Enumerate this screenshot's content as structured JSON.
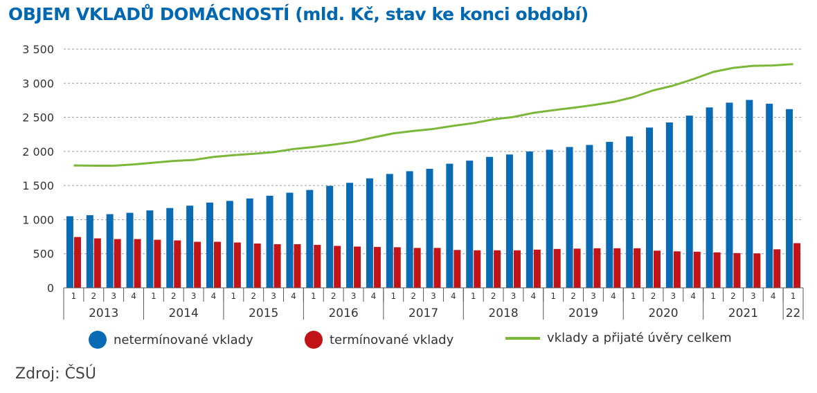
{
  "colors": {
    "title": "#0067b1",
    "nonterm": "#0a6bb5",
    "term": "#c01418",
    "total": "#7bb83a",
    "grid": "#9a9a9a"
  },
  "chart_data": {
    "type": "bar",
    "title": "OBJEM VKLADŮ DOMÁCNOSTÍ (mld. Kč, stav ke konci období)",
    "ylim": [
      0,
      3500
    ],
    "yticks": [
      "0",
      "500",
      "1 000",
      "1 500",
      "2 000",
      "2 500",
      "3 000",
      "3 500"
    ],
    "ytick_values": [
      0,
      500,
      1000,
      1500,
      2000,
      2500,
      3000,
      3500
    ],
    "grid": true,
    "legend_position": "bottom",
    "categories": [
      "1",
      "2",
      "3",
      "4",
      "1",
      "2",
      "3",
      "4",
      "1",
      "2",
      "3",
      "4",
      "1",
      "2",
      "3",
      "4",
      "1",
      "2",
      "3",
      "4",
      "1",
      "2",
      "3",
      "4",
      "1",
      "2",
      "3",
      "4",
      "1",
      "2",
      "3",
      "4",
      "1",
      "2",
      "3",
      "4",
      "1"
    ],
    "years": [
      {
        "label": "2013",
        "count": 4
      },
      {
        "label": "2014",
        "count": 4
      },
      {
        "label": "2015",
        "count": 4
      },
      {
        "label": "2016",
        "count": 4
      },
      {
        "label": "2017",
        "count": 4
      },
      {
        "label": "2018",
        "count": 4
      },
      {
        "label": "2019",
        "count": 4
      },
      {
        "label": "2020",
        "count": 4
      },
      {
        "label": "2021",
        "count": 4
      },
      {
        "label": "22",
        "count": 1
      }
    ],
    "series": [
      {
        "name": "netermínované vklady",
        "type": "bar",
        "values": [
          1050,
          1065,
          1080,
          1100,
          1135,
          1170,
          1205,
          1250,
          1275,
          1310,
          1350,
          1395,
          1435,
          1495,
          1540,
          1605,
          1670,
          1710,
          1745,
          1820,
          1865,
          1920,
          1955,
          2000,
          2025,
          2065,
          2095,
          2140,
          2220,
          2350,
          2425,
          2525,
          2645,
          2715,
          2755,
          2700,
          2620
        ]
      },
      {
        "name": "termínované vklady",
        "type": "bar",
        "values": [
          745,
          725,
          715,
          715,
          705,
          695,
          675,
          675,
          665,
          650,
          640,
          640,
          630,
          615,
          605,
          600,
          595,
          585,
          585,
          555,
          550,
          550,
          550,
          560,
          570,
          575,
          580,
          580,
          580,
          545,
          535,
          530,
          520,
          510,
          505,
          565,
          655
        ]
      },
      {
        "name": "vklady a přijaté úvěry celkem",
        "type": "line",
        "values": [
          1795,
          1790,
          1790,
          1810,
          1835,
          1860,
          1875,
          1920,
          1945,
          1965,
          1990,
          2035,
          2065,
          2100,
          2140,
          2205,
          2265,
          2300,
          2330,
          2375,
          2415,
          2470,
          2505,
          2565,
          2605,
          2640,
          2680,
          2725,
          2795,
          2895,
          2965,
          3060,
          3165,
          3225,
          3255,
          3260,
          3280
        ]
      }
    ]
  },
  "source": "Zdroj: ČSÚ"
}
